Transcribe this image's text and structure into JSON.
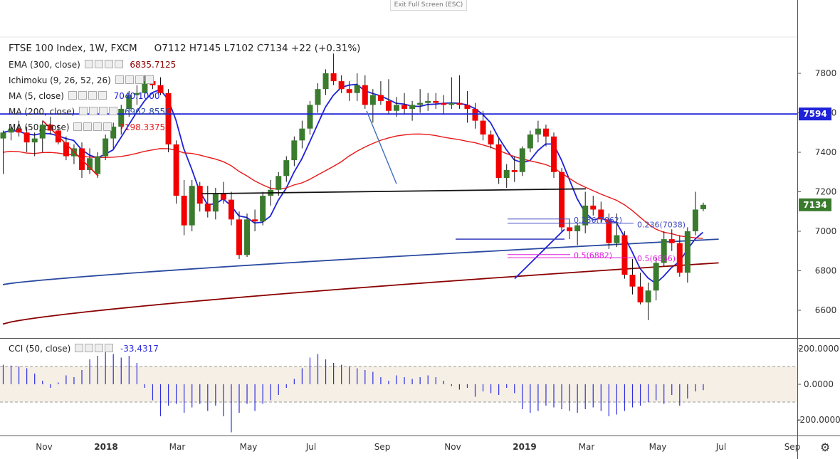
{
  "window": {
    "exit_label": "Exit Full Screen (ESC)"
  },
  "legend": {
    "symbol": "FTSE 100 Index, 1W, FXCM",
    "ohlc": "O7112  H7145  L7102  C7134  +22 (+0.31%)",
    "ema": {
      "label": "EMA (300, close)",
      "value": "6835.7125"
    },
    "ichimoku": {
      "label": "Ichimoku (9, 26, 52, 26)",
      "value": ""
    },
    "ma5": {
      "label": "MA (5, close)",
      "value": "7040.1000"
    },
    "ma200": {
      "label": "MA (200, close)",
      "value": "6962.8550"
    },
    "ma50": {
      "label": "MA (50, close)",
      "value": "7198.3375"
    },
    "cci": {
      "label": "CCI (50, close)",
      "value": "-33.4317"
    }
  },
  "colors": {
    "up": "#3a7b2e",
    "down": "#f20000",
    "ma5": "#1e22d8",
    "ma50": "#e81818",
    "ma200": "#2a4aa0",
    "ema300": "#8b0000",
    "fib236": "#3f49c0",
    "fib05": "#e01ee0",
    "hline": "#1e22d8",
    "cci": "#2d2ddf"
  },
  "chart_data": {
    "type": "candlestick",
    "timeframe": "1W",
    "price_axis": {
      "ylim": [
        6500,
        7900
      ],
      "ticks": [
        "7800",
        "7600",
        "7400",
        "7200",
        "7000",
        "6800",
        "6600"
      ]
    },
    "time_axis": {
      "ticks": [
        "Nov",
        "2018",
        "Mar",
        "May",
        "Jul",
        "Sep",
        "Nov",
        "2019",
        "Mar",
        "May",
        "Jul",
        "Sep"
      ]
    },
    "candles": [
      [
        7470,
        7510,
        7290,
        7500
      ],
      [
        7500,
        7540,
        7460,
        7520
      ],
      [
        7520,
        7560,
        7480,
        7500
      ],
      [
        7500,
        7530,
        7400,
        7450
      ],
      [
        7450,
        7500,
        7380,
        7470
      ],
      [
        7470,
        7560,
        7400,
        7540
      ],
      [
        7540,
        7580,
        7490,
        7510
      ],
      [
        7510,
        7540,
        7440,
        7450
      ],
      [
        7450,
        7480,
        7360,
        7380
      ],
      [
        7380,
        7440,
        7340,
        7420
      ],
      [
        7420,
        7450,
        7270,
        7310
      ],
      [
        7310,
        7420,
        7290,
        7370
      ],
      [
        7290,
        7400,
        7270,
        7380
      ],
      [
        7380,
        7490,
        7360,
        7470
      ],
      [
        7470,
        7550,
        7420,
        7530
      ],
      [
        7530,
        7640,
        7490,
        7620
      ],
      [
        7620,
        7710,
        7580,
        7690
      ],
      [
        7690,
        7740,
        7640,
        7700
      ],
      [
        7700,
        7790,
        7680,
        7760
      ],
      [
        7760,
        7790,
        7720,
        7740
      ],
      [
        7740,
        7780,
        7690,
        7700
      ],
      [
        7700,
        7720,
        7400,
        7440
      ],
      [
        7440,
        7460,
        7140,
        7180
      ],
      [
        7180,
        7260,
        6980,
        7030
      ],
      [
        7030,
        7260,
        7000,
        7230
      ],
      [
        7230,
        7250,
        7100,
        7140
      ],
      [
        7140,
        7230,
        7070,
        7100
      ],
      [
        7100,
        7220,
        7060,
        7190
      ],
      [
        7190,
        7250,
        7140,
        7160
      ],
      [
        7160,
        7200,
        7030,
        7060
      ],
      [
        7060,
        7100,
        6860,
        6880
      ],
      [
        6880,
        7090,
        6870,
        7060
      ],
      [
        7060,
        7110,
        7000,
        7050
      ],
      [
        7050,
        7200,
        7030,
        7180
      ],
      [
        7180,
        7260,
        7130,
        7210
      ],
      [
        7210,
        7300,
        7180,
        7280
      ],
      [
        7280,
        7380,
        7250,
        7360
      ],
      [
        7360,
        7480,
        7330,
        7460
      ],
      [
        7460,
        7560,
        7420,
        7520
      ],
      [
        7520,
        7660,
        7490,
        7640
      ],
      [
        7640,
        7750,
        7600,
        7720
      ],
      [
        7720,
        7820,
        7690,
        7800
      ],
      [
        7800,
        7900,
        7740,
        7760
      ],
      [
        7760,
        7790,
        7700,
        7720
      ],
      [
        7720,
        7760,
        7660,
        7700
      ],
      [
        7700,
        7800,
        7660,
        7740
      ],
      [
        7740,
        7790,
        7620,
        7640
      ],
      [
        7640,
        7720,
        7550,
        7690
      ],
      [
        7690,
        7760,
        7640,
        7660
      ],
      [
        7660,
        7770,
        7590,
        7610
      ],
      [
        7610,
        7680,
        7580,
        7640
      ],
      [
        7640,
        7700,
        7590,
        7620
      ],
      [
        7620,
        7660,
        7560,
        7640
      ],
      [
        7640,
        7720,
        7600,
        7650
      ],
      [
        7650,
        7700,
        7610,
        7660
      ],
      [
        7660,
        7700,
        7620,
        7650
      ],
      [
        7650,
        7690,
        7590,
        7640
      ],
      [
        7640,
        7780,
        7620,
        7650
      ],
      [
        7650,
        7790,
        7620,
        7640
      ],
      [
        7640,
        7710,
        7550,
        7620
      ],
      [
        7620,
        7650,
        7520,
        7560
      ],
      [
        7560,
        7610,
        7460,
        7490
      ],
      [
        7490,
        7510,
        7420,
        7440
      ],
      [
        7440,
        7470,
        7240,
        7270
      ],
      [
        7270,
        7340,
        7220,
        7310
      ],
      [
        7310,
        7380,
        7250,
        7300
      ],
      [
        7300,
        7430,
        7280,
        7420
      ],
      [
        7420,
        7510,
        7400,
        7490
      ],
      [
        7490,
        7560,
        7450,
        7520
      ],
      [
        7520,
        7540,
        7430,
        7480
      ],
      [
        7480,
        7500,
        7270,
        7300
      ],
      [
        7300,
        7320,
        7000,
        7020
      ],
      [
        7020,
        7060,
        6960,
        7000
      ],
      [
        7000,
        7040,
        6930,
        7030
      ],
      [
        7030,
        7200,
        6990,
        7130
      ],
      [
        7130,
        7180,
        7080,
        7110
      ],
      [
        7110,
        7150,
        7040,
        7060
      ],
      [
        7060,
        7090,
        6910,
        6940
      ],
      [
        6940,
        7090,
        6920,
        6980
      ],
      [
        6980,
        7000,
        6760,
        6780
      ],
      [
        6780,
        6860,
        6680,
        6720
      ],
      [
        6720,
        6790,
        6630,
        6640
      ],
      [
        6640,
        6740,
        6550,
        6700
      ],
      [
        6700,
        6870,
        6650,
        6840
      ],
      [
        6840,
        7000,
        6820,
        6960
      ],
      [
        6960,
        7010,
        6900,
        6940
      ],
      [
        6940,
        6980,
        6770,
        6790
      ],
      [
        6790,
        7020,
        6740,
        7000
      ],
      [
        7000,
        7200,
        6980,
        7110
      ],
      [
        7112,
        7145,
        7102,
        7134
      ]
    ],
    "series": [
      {
        "name": "MA (5, close)",
        "last": 7040.1
      },
      {
        "name": "MA (50, close)",
        "last": 7198.3375
      },
      {
        "name": "MA (200, close)",
        "last": 6962.855
      },
      {
        "name": "EMA (300, close)",
        "last": 6835.7125
      }
    ],
    "price_labels": [
      {
        "label": "7594",
        "value": 7594
      },
      {
        "label": "7134",
        "value": 7134
      }
    ],
    "annotations": [
      {
        "text": "0.236(7062)",
        "value": 7062
      },
      {
        "text": "0.236(7038)",
        "value": 7038
      },
      {
        "text": "0.5(6882)",
        "value": 6882
      },
      {
        "text": "0.5(6866)",
        "value": 6866
      }
    ],
    "lines": {
      "horizontal": 7594,
      "neckline": [
        7190,
        7215
      ],
      "fib_236": [
        7062,
        7038
      ],
      "fib_05": [
        6882,
        6866
      ]
    },
    "cci": {
      "ylim": [
        -300,
        250
      ],
      "ticks": [
        "200.0000",
        "0.0000",
        "-200.0000"
      ],
      "bands": [
        100,
        -100
      ],
      "last": -33.4317,
      "values": [
        110,
        105,
        100,
        90,
        60,
        20,
        -20,
        10,
        50,
        40,
        80,
        140,
        160,
        180,
        170,
        150,
        160,
        120,
        -20,
        -90,
        -180,
        -120,
        -110,
        -160,
        -130,
        -110,
        -150,
        -120,
        -180,
        -270,
        -160,
        -110,
        -150,
        -110,
        -90,
        -60,
        -20,
        30,
        90,
        150,
        170,
        140,
        120,
        110,
        100,
        90,
        80,
        70,
        40,
        20,
        50,
        40,
        30,
        40,
        50,
        40,
        20,
        -10,
        -30,
        -20,
        -70,
        -40,
        -50,
        -60,
        -20,
        -50,
        -140,
        -160,
        -150,
        -120,
        -130,
        -140,
        -150,
        -160,
        -140,
        -130,
        -150,
        -180,
        -170,
        -150,
        -130,
        -120,
        -100,
        -90,
        -110,
        -60,
        -120,
        -80,
        -40,
        -33
      ]
    }
  }
}
